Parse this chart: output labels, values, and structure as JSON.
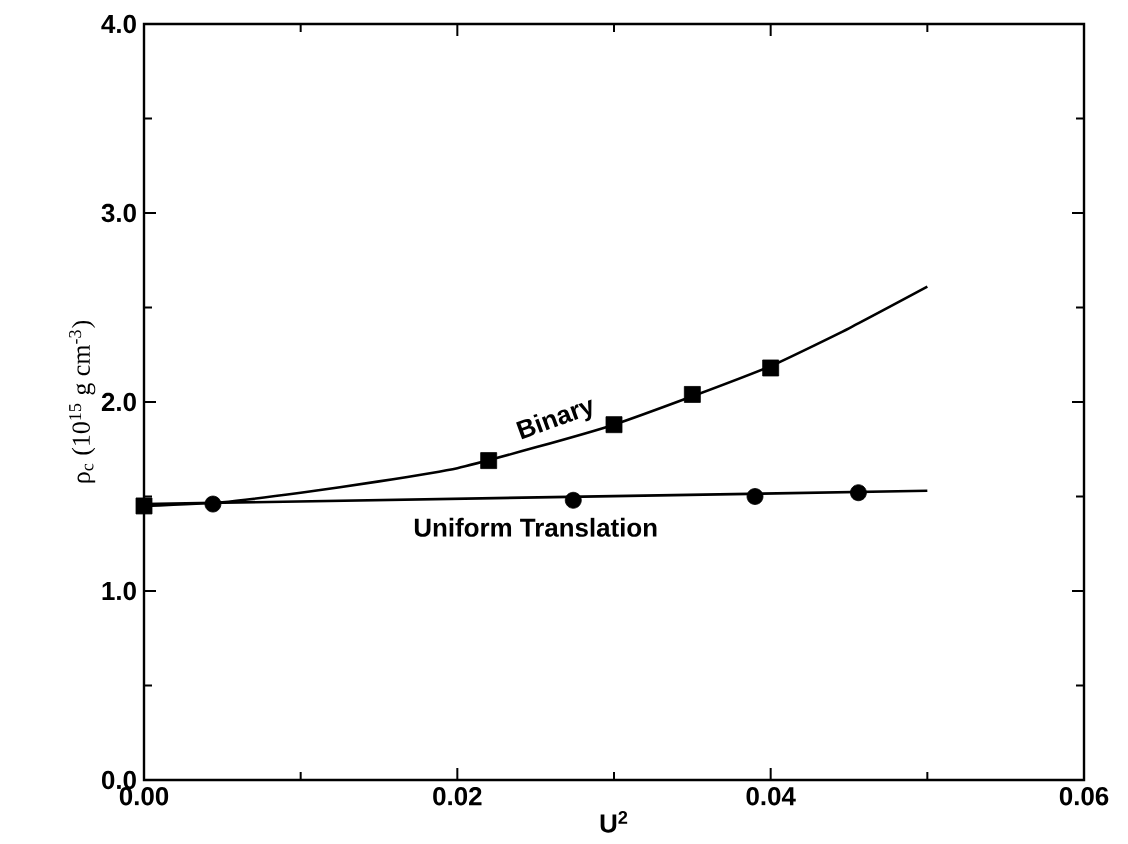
{
  "chart_data": {
    "type": "line",
    "xlabel": "U$^{2}$",
    "ylabel": "ρ$_{c}$ (10$^{15}$ g cm$^{-3}$)",
    "xlim": [
      0,
      0.06
    ],
    "ylim": [
      0,
      4
    ],
    "xticks": [
      {
        "value": 0,
        "label": "0.00"
      },
      {
        "value": 0.02,
        "label": "0.02"
      },
      {
        "value": 0.04,
        "label": "0.04"
      },
      {
        "value": 0.06,
        "label": "0.06"
      }
    ],
    "yticks": [
      {
        "value": 0,
        "label": "0.0"
      },
      {
        "value": 1,
        "label": "1.0"
      },
      {
        "value": 2,
        "label": "2.0"
      },
      {
        "value": 3,
        "label": "3.0"
      },
      {
        "value": 4,
        "label": "4.0"
      }
    ],
    "grid": false,
    "legend": false,
    "series": [
      {
        "name": "Binary",
        "color": "#000000",
        "marker": "none",
        "x": [
          0,
          0.005,
          0.01,
          0.015,
          0.02,
          0.025,
          0.03,
          0.035,
          0.04,
          0.045,
          0.05
        ],
        "values": [
          1.45,
          1.47,
          1.52,
          1.58,
          1.65,
          1.76,
          1.88,
          2.03,
          2.19,
          2.39,
          2.61
        ]
      },
      {
        "type": "scatter",
        "color": "#000000",
        "marker": "square",
        "x": [
          0,
          0.022,
          0.03,
          0.035,
          0.04
        ],
        "values": [
          1.45,
          1.69,
          1.88,
          2.04,
          2.18
        ]
      },
      {
        "name": "Uniform Translation",
        "color": "#000000",
        "marker": "none",
        "x": [
          0,
          0.05
        ],
        "values": [
          1.46,
          1.53
        ]
      },
      {
        "type": "scatter",
        "color": "#000000",
        "marker": "circle",
        "x": [
          0.0044,
          0.0274,
          0.039,
          0.0456
        ],
        "values": [
          1.46,
          1.48,
          1.5,
          1.52
        ]
      }
    ]
  }
}
